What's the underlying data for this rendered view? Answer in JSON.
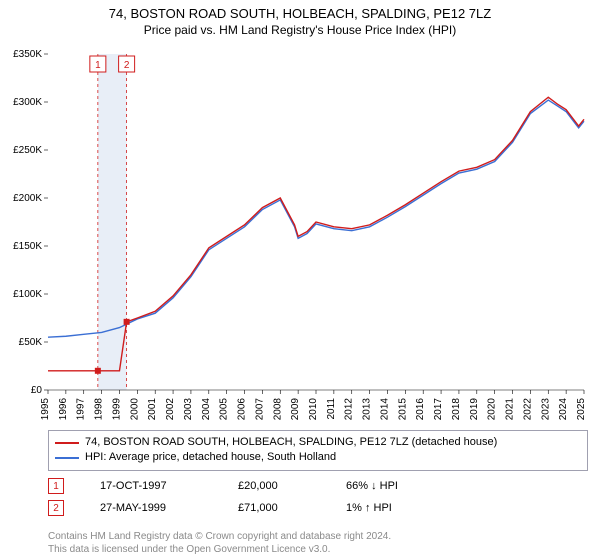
{
  "title": "74, BOSTON ROAD SOUTH, HOLBEACH, SPALDING, PE12 7LZ",
  "subtitle": "Price paid vs. HM Land Registry's House Price Index (HPI)",
  "chart": {
    "type": "line",
    "x_years": [
      1995,
      1996,
      1997,
      1998,
      1999,
      2000,
      2001,
      2002,
      2003,
      2004,
      2005,
      2006,
      2007,
      2008,
      2009,
      2010,
      2011,
      2012,
      2013,
      2014,
      2015,
      2016,
      2017,
      2018,
      2019,
      2020,
      2021,
      2022,
      2023,
      2024,
      2025
    ],
    "ylim": [
      0,
      350000
    ],
    "ytick_step": 50000,
    "ytick_labels": [
      "£0",
      "£50K",
      "£100K",
      "£150K",
      "£200K",
      "£250K",
      "£300K",
      "£350K"
    ],
    "plot_bg": "#ffffff",
    "grid": false,
    "line_width": 1.4,
    "highlight_band": {
      "x_start": 1997.79,
      "x_end": 1999.4,
      "fill": "#e8eef7"
    },
    "series": [
      {
        "name": "property_price",
        "label": "74, BOSTON ROAD SOUTH, HOLBEACH, SPALDING, PE12 7LZ (detached house)",
        "color": "#d01c1c",
        "xy": [
          [
            1995,
            20000
          ],
          [
            1996,
            20000
          ],
          [
            1997,
            20000
          ],
          [
            1997.79,
            20000
          ],
          [
            1998,
            20000
          ],
          [
            1999,
            20000
          ],
          [
            1999.4,
            71000
          ],
          [
            2000,
            75000
          ],
          [
            2001,
            82000
          ],
          [
            2002,
            98000
          ],
          [
            2003,
            120000
          ],
          [
            2004,
            148000
          ],
          [
            2005,
            160000
          ],
          [
            2006,
            172000
          ],
          [
            2007,
            190000
          ],
          [
            2008,
            200000
          ],
          [
            2008.8,
            172000
          ],
          [
            2009,
            160000
          ],
          [
            2009.5,
            165000
          ],
          [
            2010,
            175000
          ],
          [
            2011,
            170000
          ],
          [
            2012,
            168000
          ],
          [
            2013,
            172000
          ],
          [
            2014,
            182000
          ],
          [
            2015,
            193000
          ],
          [
            2016,
            205000
          ],
          [
            2017,
            217000
          ],
          [
            2018,
            228000
          ],
          [
            2019,
            232000
          ],
          [
            2020,
            240000
          ],
          [
            2021,
            260000
          ],
          [
            2022,
            290000
          ],
          [
            2023,
            305000
          ],
          [
            2023.5,
            298000
          ],
          [
            2024,
            292000
          ],
          [
            2024.7,
            275000
          ],
          [
            2025,
            282000
          ]
        ]
      },
      {
        "name": "hpi",
        "label": "HPI: Average price, detached house, South Holland",
        "color": "#3b6fd4",
        "xy": [
          [
            1995,
            55000
          ],
          [
            1996,
            56000
          ],
          [
            1997,
            58000
          ],
          [
            1998,
            60000
          ],
          [
            1999,
            65000
          ],
          [
            2000,
            74000
          ],
          [
            2001,
            80000
          ],
          [
            2002,
            96000
          ],
          [
            2003,
            118000
          ],
          [
            2004,
            146000
          ],
          [
            2005,
            158000
          ],
          [
            2006,
            170000
          ],
          [
            2007,
            188000
          ],
          [
            2008,
            198000
          ],
          [
            2008.8,
            170000
          ],
          [
            2009,
            158000
          ],
          [
            2009.5,
            163000
          ],
          [
            2010,
            173000
          ],
          [
            2011,
            168000
          ],
          [
            2012,
            166000
          ],
          [
            2013,
            170000
          ],
          [
            2014,
            180000
          ],
          [
            2015,
            191000
          ],
          [
            2016,
            203000
          ],
          [
            2017,
            215000
          ],
          [
            2018,
            226000
          ],
          [
            2019,
            230000
          ],
          [
            2020,
            238000
          ],
          [
            2021,
            258000
          ],
          [
            2022,
            288000
          ],
          [
            2023,
            302000
          ],
          [
            2023.5,
            296000
          ],
          [
            2024,
            290000
          ],
          [
            2024.7,
            273000
          ],
          [
            2025,
            280000
          ]
        ]
      }
    ],
    "markers": [
      {
        "num": "1",
        "x": 1997.79,
        "y": 20000,
        "color": "#d01c1c",
        "vline_dash": "3,3",
        "date": "17-OCT-1997",
        "price": "£20,000",
        "delta": "66% ↓ HPI"
      },
      {
        "num": "2",
        "x": 1999.4,
        "y": 71000,
        "color": "#d01c1c",
        "vline_dash": "3,3",
        "date": "27-MAY-1999",
        "price": "£71,000",
        "delta": "1% ↑ HPI"
      }
    ]
  },
  "legend": {
    "border_color": "#a0a0b0"
  },
  "footer": {
    "line1": "Contains HM Land Registry data © Crown copyright and database right 2024.",
    "line2": "This data is licensed under the Open Government Licence v3.0."
  }
}
